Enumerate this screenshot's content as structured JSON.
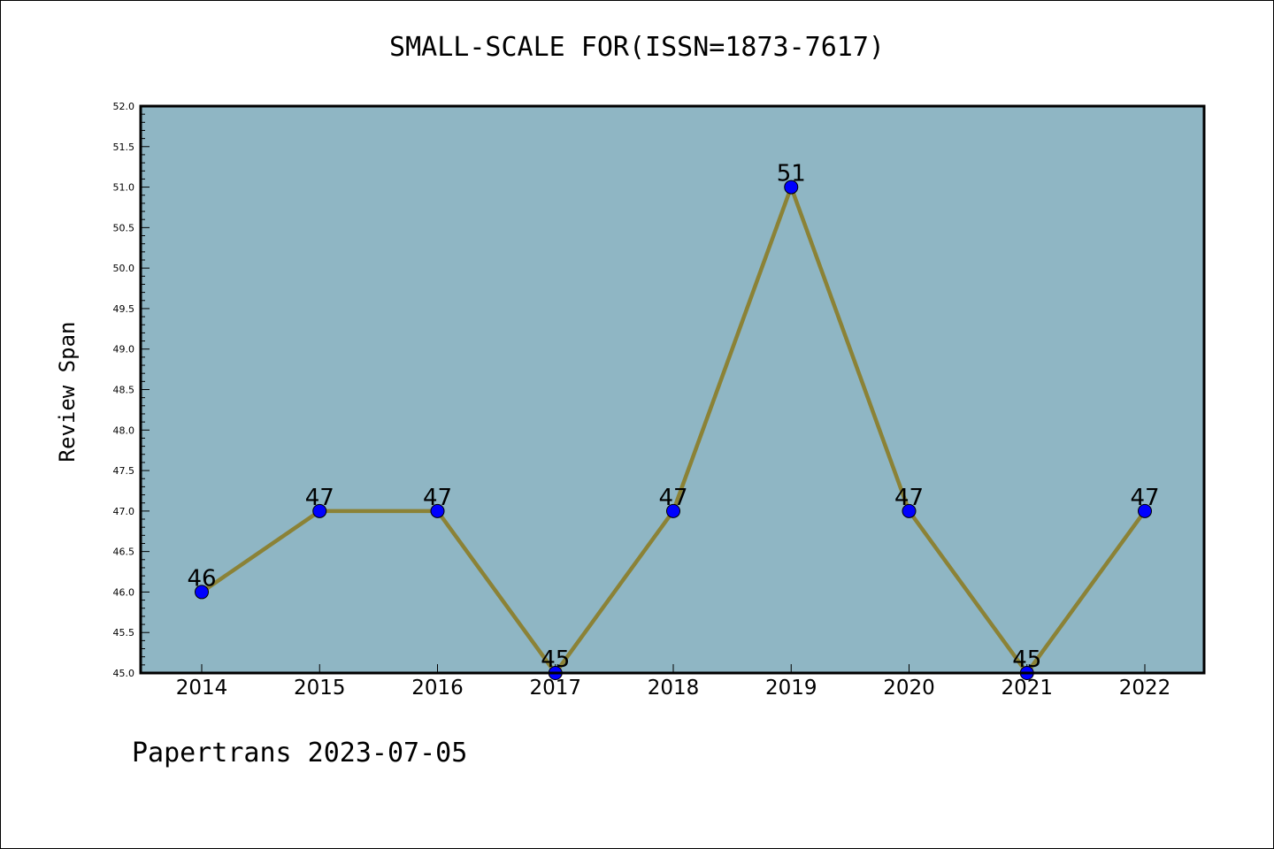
{
  "chart_data": {
    "type": "line",
    "title": "SMALL-SCALE FOR(ISSN=1873-7617)",
    "xlabel": "",
    "ylabel": "Review Span",
    "categories": [
      "2014",
      "2015",
      "2016",
      "2017",
      "2018",
      "2019",
      "2020",
      "2021",
      "2022"
    ],
    "values": [
      46,
      47,
      47,
      45,
      47,
      51,
      47,
      45,
      47
    ],
    "data_labels": [
      "46",
      "47",
      "47",
      "45",
      "47",
      "51",
      "47",
      "45",
      "47"
    ],
    "ylim": [
      45.0,
      52.0
    ],
    "yticks": [
      "45.0",
      "45.5",
      "46.0",
      "46.5",
      "47.0",
      "47.5",
      "48.0",
      "48.5",
      "49.0",
      "49.5",
      "50.0",
      "50.5",
      "51.0",
      "51.5",
      "52.0"
    ],
    "grid": false,
    "legend": "none",
    "colors": {
      "plot_background": "#8fb6c4",
      "line": "#8b8236",
      "marker": "#0000ff"
    }
  },
  "footer": "Papertrans 2023-07-05"
}
